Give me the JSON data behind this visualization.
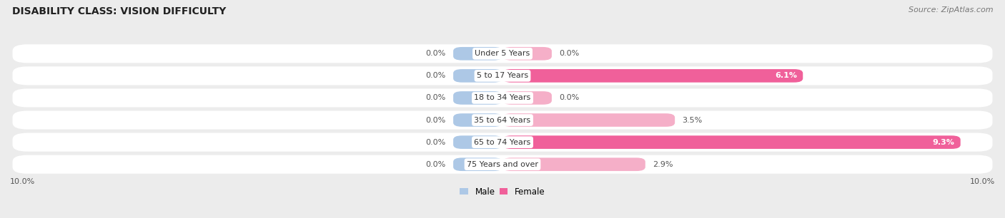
{
  "title": "DISABILITY CLASS: VISION DIFFICULTY",
  "source": "Source: ZipAtlas.com",
  "categories": [
    "Under 5 Years",
    "5 to 17 Years",
    "18 to 34 Years",
    "35 to 64 Years",
    "65 to 74 Years",
    "75 Years and over"
  ],
  "male_values": [
    0.0,
    0.0,
    0.0,
    0.0,
    0.0,
    0.0
  ],
  "female_values": [
    0.0,
    6.1,
    0.0,
    3.5,
    9.3,
    2.9
  ],
  "male_color": "#adc8e6",
  "female_color_light": "#f5afc8",
  "female_color_dark": "#f0609a",
  "male_stub": 1.0,
  "female_stub": 1.0,
  "xlim_left": -10.0,
  "xlim_right": 10.0,
  "background_color": "#ececec",
  "row_bg_color": "#ffffff",
  "title_fontsize": 10,
  "source_fontsize": 8,
  "label_fontsize": 8,
  "cat_fontsize": 8
}
